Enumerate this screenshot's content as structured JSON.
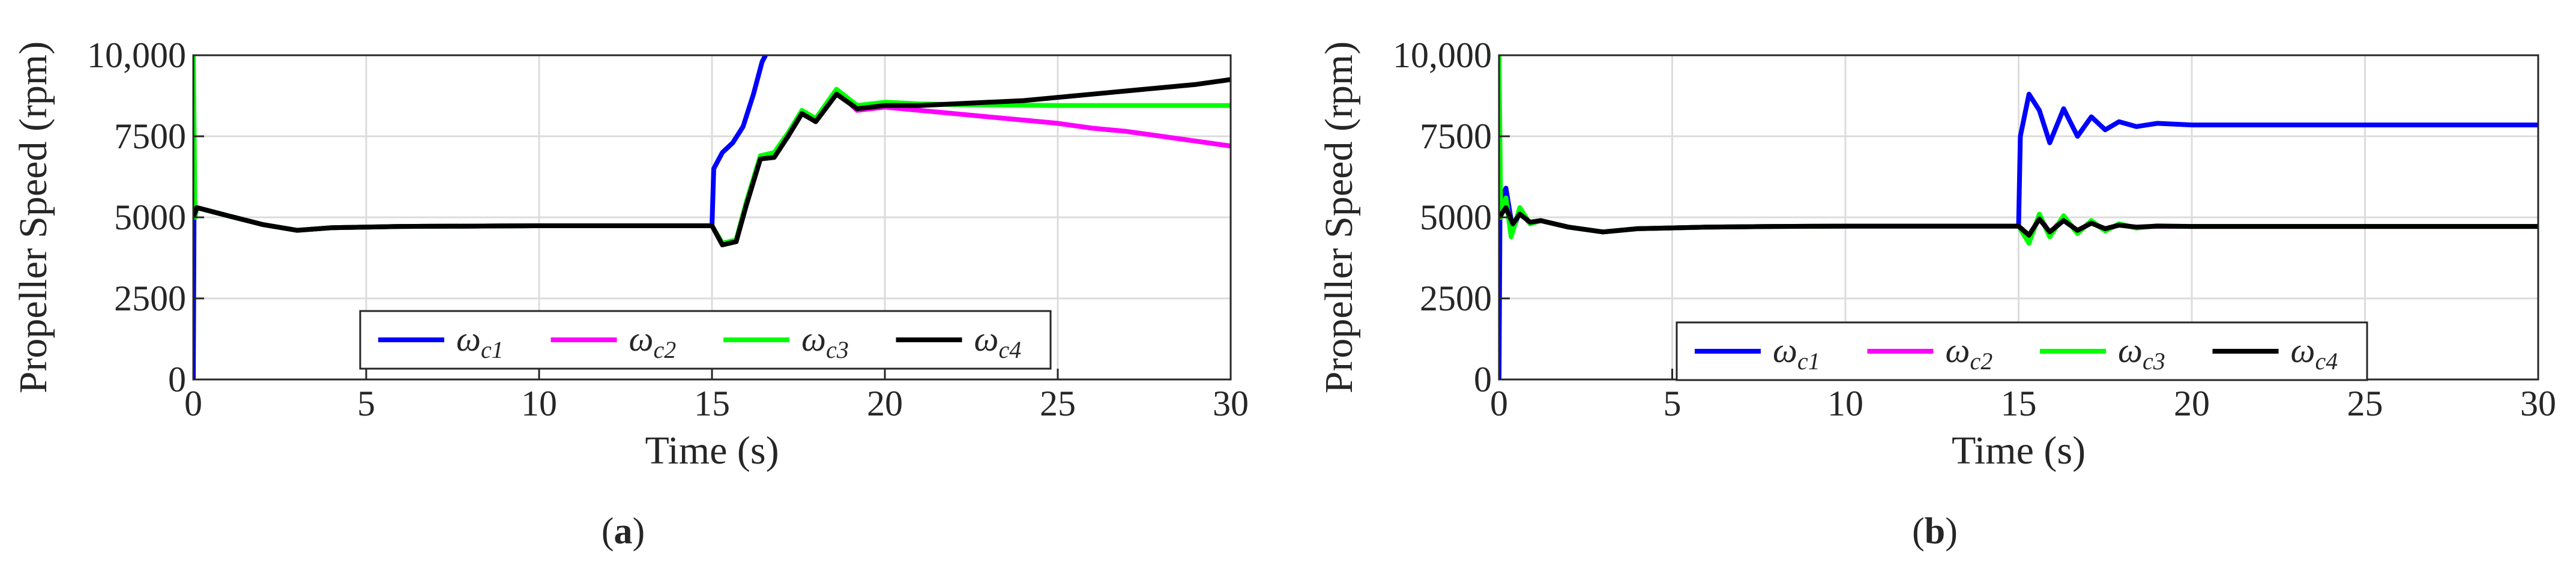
{
  "figure": {
    "panels": [
      {
        "label_open": "(",
        "label": "a",
        "label_close": ")"
      },
      {
        "label_open": "(",
        "label": "b",
        "label_close": ")"
      }
    ]
  },
  "chart_data": [
    {
      "type": "line",
      "panel": "a",
      "xlabel": "Time (s)",
      "ylabel": "Propeller Speed (rpm)",
      "xlim": [
        0,
        30
      ],
      "ylim": [
        0,
        10000
      ],
      "xticks": [
        0,
        5,
        10,
        15,
        20,
        25,
        30
      ],
      "xtick_labels": [
        "0",
        "5",
        "10",
        "15",
        "20",
        "25",
        "30"
      ],
      "yticks": [
        0,
        2500,
        5000,
        7500,
        10000
      ],
      "ytick_labels": [
        "0",
        "2500",
        "5000",
        "7500",
        "10,000"
      ],
      "grid": true,
      "legend_position": "bottom-center",
      "legend_orientation": "horizontal",
      "series": [
        {
          "name": "ωc1",
          "symbol": "ω",
          "subscript": "c1",
          "color": "#0000ff",
          "points": [
            [
              0,
              0
            ],
            [
              0.02,
              5000
            ],
            [
              0.1,
              5300
            ],
            [
              1,
              5050
            ],
            [
              2,
              4780
            ],
            [
              3,
              4600
            ],
            [
              4,
              4680
            ],
            [
              6,
              4720
            ],
            [
              8,
              4730
            ],
            [
              10,
              4740
            ],
            [
              12,
              4740
            ],
            [
              14,
              4740
            ],
            [
              15,
              4740
            ],
            [
              15.05,
              6500
            ],
            [
              15.3,
              7000
            ],
            [
              15.6,
              7300
            ],
            [
              15.9,
              7800
            ],
            [
              16.2,
              8800
            ],
            [
              16.45,
              9800
            ],
            [
              16.55,
              10000
            ]
          ]
        },
        {
          "name": "ωc2",
          "symbol": "ω",
          "subscript": "c2",
          "color": "#ff00ff",
          "points": [
            [
              0,
              5000
            ],
            [
              0.1,
              5300
            ],
            [
              1,
              5050
            ],
            [
              2,
              4780
            ],
            [
              3,
              4600
            ],
            [
              4,
              4680
            ],
            [
              6,
              4720
            ],
            [
              8,
              4730
            ],
            [
              10,
              4740
            ],
            [
              12,
              4740
            ],
            [
              14,
              4740
            ],
            [
              15,
              4740
            ],
            [
              15.3,
              4200
            ],
            [
              15.7,
              4300
            ],
            [
              16,
              5500
            ],
            [
              16.4,
              6800
            ],
            [
              16.8,
              6900
            ],
            [
              17.2,
              7500
            ],
            [
              17.6,
              8200
            ],
            [
              18,
              8000
            ],
            [
              18.6,
              8900
            ],
            [
              19.2,
              8300
            ],
            [
              20,
              8400
            ],
            [
              21,
              8300
            ],
            [
              22,
              8200
            ],
            [
              23,
              8100
            ],
            [
              24,
              8000
            ],
            [
              25,
              7900
            ],
            [
              26,
              7750
            ],
            [
              27,
              7650
            ],
            [
              28,
              7500
            ],
            [
              29,
              7350
            ],
            [
              30,
              7200
            ]
          ]
        },
        {
          "name": "ωc3",
          "symbol": "ω",
          "subscript": "c3",
          "color": "#00ff00",
          "points": [
            [
              0,
              10000
            ],
            [
              0.05,
              5000
            ],
            [
              0.1,
              5300
            ],
            [
              1,
              5050
            ],
            [
              2,
              4780
            ],
            [
              3,
              4600
            ],
            [
              4,
              4680
            ],
            [
              6,
              4720
            ],
            [
              8,
              4730
            ],
            [
              10,
              4740
            ],
            [
              12,
              4740
            ],
            [
              14,
              4740
            ],
            [
              15,
              4740
            ],
            [
              15.3,
              4200
            ],
            [
              15.7,
              4300
            ],
            [
              16,
              5500
            ],
            [
              16.4,
              6900
            ],
            [
              16.8,
              7000
            ],
            [
              17.2,
              7600
            ],
            [
              17.6,
              8300
            ],
            [
              18,
              8050
            ],
            [
              18.6,
              8950
            ],
            [
              19.2,
              8450
            ],
            [
              20,
              8550
            ],
            [
              21,
              8500
            ],
            [
              22,
              8480
            ],
            [
              23,
              8470
            ],
            [
              24,
              8460
            ],
            [
              25,
              8450
            ],
            [
              26,
              8450
            ],
            [
              27,
              8450
            ],
            [
              28,
              8450
            ],
            [
              29,
              8450
            ],
            [
              30,
              8450
            ]
          ]
        },
        {
          "name": "ωc4",
          "symbol": "ω",
          "subscript": "c4",
          "color": "#000000",
          "points": [
            [
              0,
              5000
            ],
            [
              0.1,
              5300
            ],
            [
              1,
              5050
            ],
            [
              2,
              4780
            ],
            [
              3,
              4600
            ],
            [
              4,
              4680
            ],
            [
              6,
              4720
            ],
            [
              8,
              4730
            ],
            [
              10,
              4740
            ],
            [
              12,
              4740
            ],
            [
              14,
              4740
            ],
            [
              15,
              4740
            ],
            [
              15.3,
              4150
            ],
            [
              15.7,
              4250
            ],
            [
              16,
              5400
            ],
            [
              16.4,
              6800
            ],
            [
              16.8,
              6850
            ],
            [
              17.2,
              7500
            ],
            [
              17.6,
              8200
            ],
            [
              18,
              7950
            ],
            [
              18.6,
              8800
            ],
            [
              19.2,
              8350
            ],
            [
              20,
              8450
            ],
            [
              21,
              8450
            ],
            [
              22,
              8500
            ],
            [
              23,
              8550
            ],
            [
              24,
              8600
            ],
            [
              25,
              8700
            ],
            [
              26,
              8800
            ],
            [
              27,
              8900
            ],
            [
              28,
              9000
            ],
            [
              29,
              9100
            ],
            [
              30,
              9250
            ]
          ]
        }
      ]
    },
    {
      "type": "line",
      "panel": "b",
      "xlabel": "Time (s)",
      "ylabel": "Propeller Speed (rpm)",
      "xlim": [
        0,
        30
      ],
      "ylim": [
        0,
        10000
      ],
      "xticks": [
        0,
        5,
        10,
        15,
        20,
        25,
        30
      ],
      "xtick_labels": [
        "0",
        "5",
        "10",
        "15",
        "20",
        "25",
        "30"
      ],
      "yticks": [
        0,
        2500,
        5000,
        7500,
        10000
      ],
      "ytick_labels": [
        "0",
        "2500",
        "5000",
        "7500",
        "10,000"
      ],
      "grid": true,
      "legend_position": "bottom-center",
      "legend_orientation": "horizontal",
      "series": [
        {
          "name": "ωc1",
          "symbol": "ω",
          "subscript": "c1",
          "color": "#0000ff",
          "points": [
            [
              0,
              0
            ],
            [
              0.03,
              5500
            ],
            [
              0.2,
              5900
            ],
            [
              0.4,
              4600
            ],
            [
              0.6,
              5200
            ],
            [
              0.9,
              4800
            ],
            [
              1.2,
              4900
            ],
            [
              2,
              4700
            ],
            [
              3,
              4550
            ],
            [
              4,
              4650
            ],
            [
              6,
              4700
            ],
            [
              8,
              4720
            ],
            [
              10,
              4730
            ],
            [
              12,
              4730
            ],
            [
              14,
              4730
            ],
            [
              15,
              4730
            ],
            [
              15.05,
              7500
            ],
            [
              15.3,
              8800
            ],
            [
              15.6,
              8300
            ],
            [
              15.9,
              7300
            ],
            [
              16.3,
              8350
            ],
            [
              16.7,
              7500
            ],
            [
              17.1,
              8100
            ],
            [
              17.5,
              7700
            ],
            [
              17.9,
              7950
            ],
            [
              18.4,
              7800
            ],
            [
              19,
              7900
            ],
            [
              20,
              7850
            ],
            [
              21,
              7850
            ],
            [
              23,
              7850
            ],
            [
              25,
              7850
            ],
            [
              27,
              7850
            ],
            [
              30,
              7850
            ]
          ]
        },
        {
          "name": "ωc2",
          "symbol": "ω",
          "subscript": "c2",
          "color": "#ff00ff",
          "points": [
            [
              0,
              5000
            ],
            [
              0.2,
              5400
            ],
            [
              0.4,
              4700
            ],
            [
              0.6,
              5200
            ],
            [
              0.9,
              4800
            ],
            [
              1.2,
              4900
            ],
            [
              2,
              4700
            ],
            [
              3,
              4550
            ],
            [
              4,
              4650
            ],
            [
              6,
              4700
            ],
            [
              8,
              4720
            ],
            [
              10,
              4730
            ],
            [
              12,
              4730
            ],
            [
              14,
              4730
            ],
            [
              15,
              4730
            ],
            [
              15.3,
              4300
            ],
            [
              15.6,
              5050
            ],
            [
              15.9,
              4500
            ],
            [
              16.3,
              5000
            ],
            [
              16.7,
              4550
            ],
            [
              17.1,
              4850
            ],
            [
              17.5,
              4600
            ],
            [
              17.9,
              4780
            ],
            [
              18.4,
              4680
            ],
            [
              19,
              4730
            ],
            [
              20,
              4720
            ],
            [
              22,
              4720
            ],
            [
              25,
              4720
            ],
            [
              30,
              4720
            ]
          ]
        },
        {
          "name": "ωc3",
          "symbol": "ω",
          "subscript": "c3",
          "color": "#00ff00",
          "points": [
            [
              0,
              10000
            ],
            [
              0.05,
              5000
            ],
            [
              0.2,
              5600
            ],
            [
              0.35,
              4400
            ],
            [
              0.6,
              5300
            ],
            [
              0.9,
              4800
            ],
            [
              1.2,
              4900
            ],
            [
              2,
              4700
            ],
            [
              3,
              4550
            ],
            [
              4,
              4650
            ],
            [
              6,
              4700
            ],
            [
              8,
              4720
            ],
            [
              10,
              4730
            ],
            [
              12,
              4730
            ],
            [
              14,
              4730
            ],
            [
              15,
              4730
            ],
            [
              15.3,
              4200
            ],
            [
              15.6,
              5100
            ],
            [
              15.9,
              4400
            ],
            [
              16.3,
              5050
            ],
            [
              16.7,
              4500
            ],
            [
              17.1,
              4900
            ],
            [
              17.5,
              4580
            ],
            [
              17.9,
              4800
            ],
            [
              18.4,
              4670
            ],
            [
              19,
              4740
            ],
            [
              20,
              4720
            ],
            [
              22,
              4720
            ],
            [
              25,
              4720
            ],
            [
              30,
              4720
            ]
          ]
        },
        {
          "name": "ωc4",
          "symbol": "ω",
          "subscript": "c4",
          "color": "#000000",
          "points": [
            [
              0,
              5000
            ],
            [
              0.2,
              5300
            ],
            [
              0.4,
              4800
            ],
            [
              0.6,
              5100
            ],
            [
              0.9,
              4850
            ],
            [
              1.2,
              4900
            ],
            [
              2,
              4700
            ],
            [
              3,
              4550
            ],
            [
              4,
              4650
            ],
            [
              6,
              4700
            ],
            [
              8,
              4720
            ],
            [
              10,
              4730
            ],
            [
              12,
              4730
            ],
            [
              14,
              4730
            ],
            [
              15,
              4730
            ],
            [
              15.3,
              4450
            ],
            [
              15.6,
              4950
            ],
            [
              15.9,
              4550
            ],
            [
              16.3,
              4900
            ],
            [
              16.7,
              4600
            ],
            [
              17.1,
              4820
            ],
            [
              17.5,
              4650
            ],
            [
              17.9,
              4760
            ],
            [
              18.4,
              4700
            ],
            [
              19,
              4730
            ],
            [
              20,
              4720
            ],
            [
              22,
              4720
            ],
            [
              25,
              4720
            ],
            [
              30,
              4720
            ]
          ]
        }
      ]
    }
  ]
}
